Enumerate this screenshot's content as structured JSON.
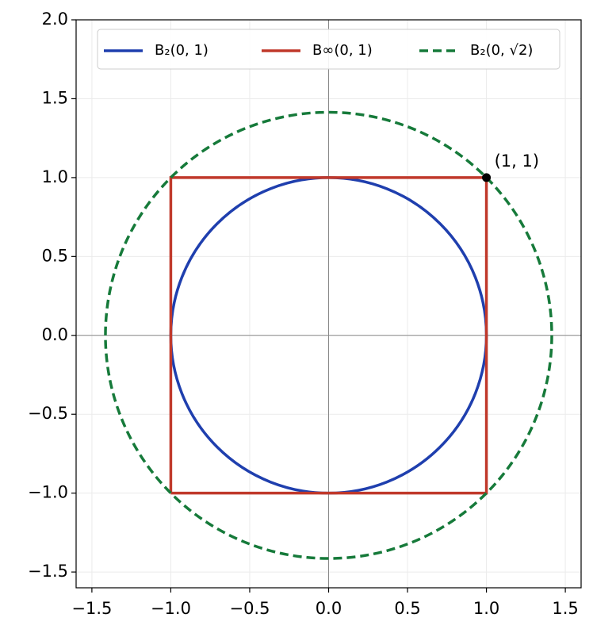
{
  "chart_data": {
    "type": "shapes",
    "xlim": [
      -1.6,
      1.6
    ],
    "ylim": [
      -1.6,
      2.0
    ],
    "xticks": [
      {
        "value": -1.5,
        "label": "−1.5"
      },
      {
        "value": -1.0,
        "label": "−1.0"
      },
      {
        "value": -0.5,
        "label": "−0.5"
      },
      {
        "value": 0,
        "label": "0.0"
      },
      0.5,
      {
        "value": 1.0,
        "label": "1.0"
      },
      1.5
    ],
    "yticks": [
      {
        "value": -1.5,
        "label": "−1.5"
      },
      {
        "value": -1.0,
        "label": "−1.0"
      },
      {
        "value": -0.5,
        "label": "−0.5"
      },
      {
        "value": 0,
        "label": "0.0"
      },
      0.5,
      {
        "value": 1.0,
        "label": "1.0"
      },
      1.5,
      {
        "value": 2.0,
        "label": "2.0"
      }
    ],
    "grid": true,
    "zero_lines": true,
    "legend": "upper center",
    "series": [
      {
        "name": "B₂(0, 1)",
        "color": "#1f3fae",
        "shape": "circle",
        "line_style": "solid",
        "center": [
          0,
          0
        ],
        "radius": 1
      },
      {
        "name": "B∞(0, 1)",
        "color": "#c0392b",
        "shape": "polygon",
        "line_style": "solid",
        "x": [
          -1,
          1,
          1,
          -1,
          -1
        ],
        "y": [
          -1,
          -1,
          1,
          1,
          -1
        ]
      },
      {
        "name": "B₂(0, √2)",
        "color": "#167a3a",
        "shape": "circle",
        "line_style": "dashed",
        "center": [
          0,
          0
        ],
        "radius": 1.4142
      }
    ],
    "points": [
      {
        "x": 1,
        "y": 1,
        "label": "(1, 1)",
        "color": "#000000"
      }
    ]
  }
}
